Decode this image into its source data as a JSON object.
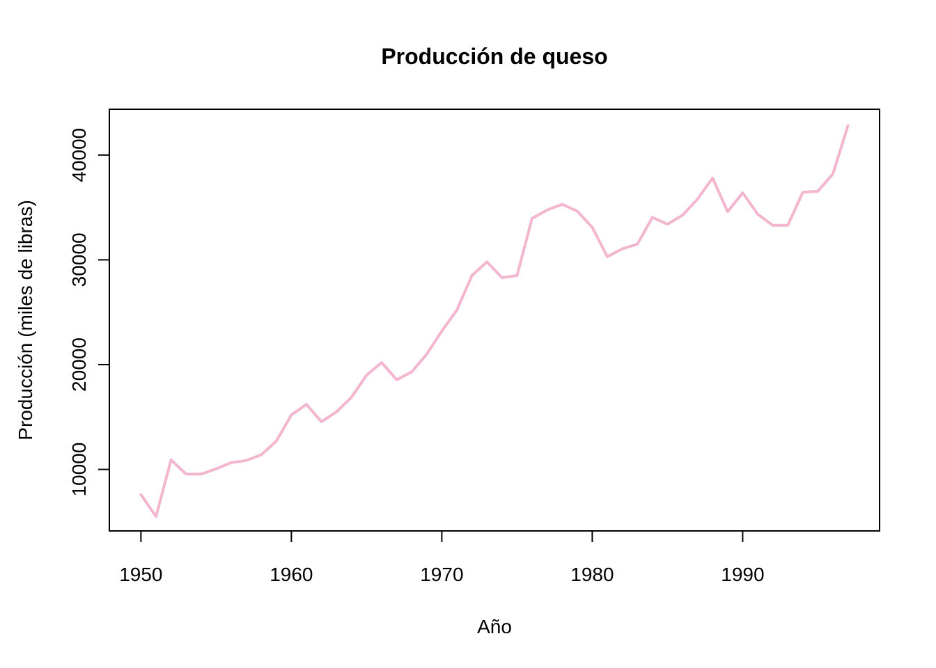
{
  "chart_data": {
    "type": "line",
    "title": "Producción de queso",
    "xlabel": "Año",
    "ylabel": "Producción (miles de libras)",
    "xlim": [
      1947.9,
      1999.1
    ],
    "ylim": [
      4130,
      44370
    ],
    "x_ticks": [
      1950,
      1960,
      1970,
      1980,
      1990
    ],
    "y_ticks": [
      10000,
      20000,
      30000,
      40000
    ],
    "grid": false,
    "legend": "none",
    "line_color": "#F4B6CF",
    "series": [
      {
        "x": [
          1950,
          1951,
          1952,
          1953,
          1954,
          1955,
          1956,
          1957,
          1958,
          1959,
          1960,
          1961,
          1962,
          1963,
          1964,
          1965,
          1966,
          1967,
          1968,
          1969,
          1970,
          1971,
          1972,
          1973,
          1974,
          1975,
          1976,
          1977,
          1978,
          1979,
          1980,
          1981,
          1982,
          1983,
          1984,
          1985,
          1986,
          1987,
          1988,
          1989,
          1990,
          1991,
          1992,
          1993,
          1994,
          1995,
          1996,
          1997
        ],
        "values": [
          7600,
          5500,
          10900,
          9550,
          9550,
          10050,
          10650,
          10850,
          11400,
          12700,
          15200,
          16200,
          14550,
          15500,
          16900,
          19000,
          20200,
          18550,
          19300,
          21000,
          23200,
          25200,
          28500,
          29800,
          28300,
          28500,
          33950,
          34750,
          35300,
          34650,
          33100,
          30300,
          31050,
          31500,
          34050,
          33400,
          34250,
          35800,
          37800,
          34600,
          36400,
          34350,
          33300,
          33300,
          36450,
          36550,
          38200,
          42800
        ]
      }
    ]
  }
}
